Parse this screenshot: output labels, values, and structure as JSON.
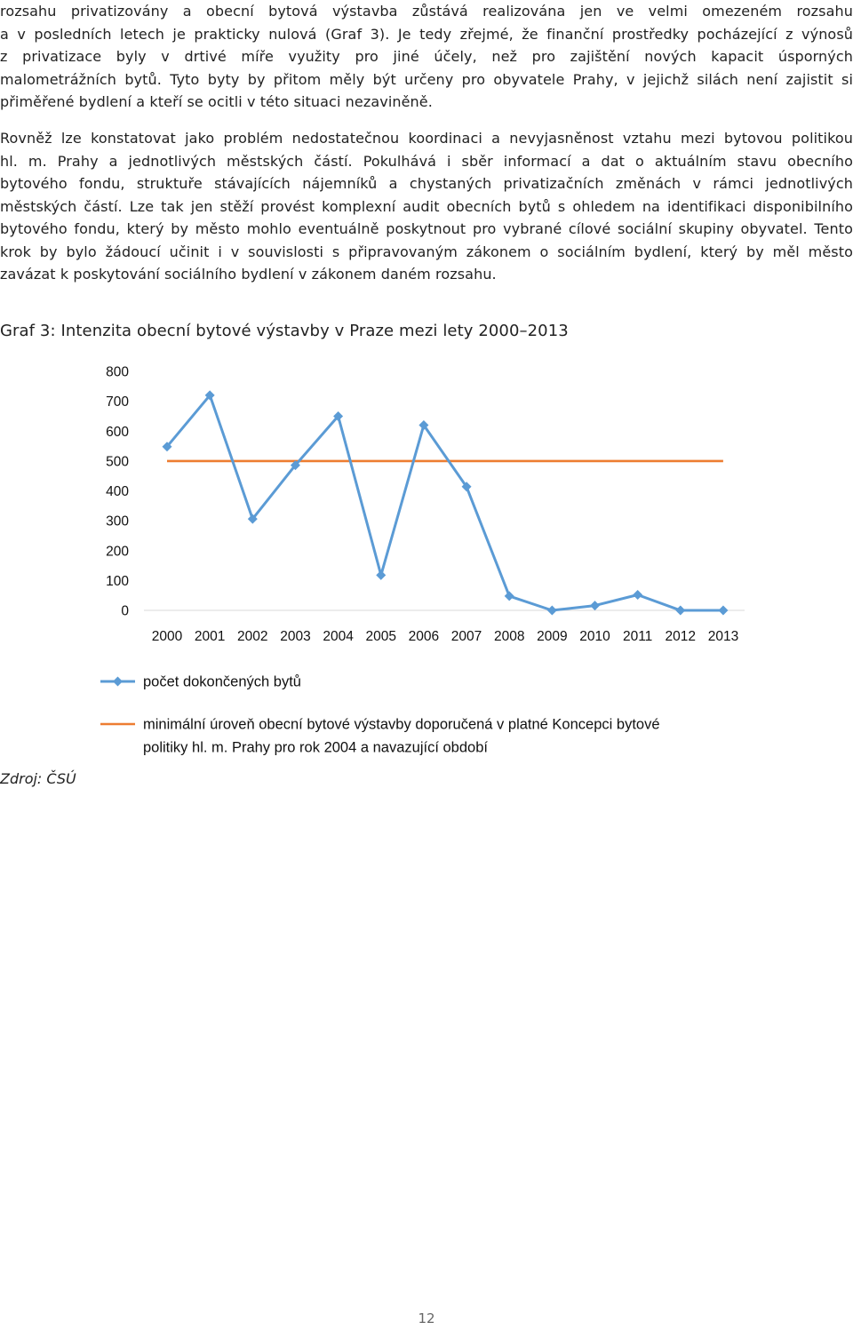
{
  "paragraph1": [
    "rozsahu privatizovány a obecní bytová výstavba zůstává realizována jen ve velmi omezeném rozsahu",
    "a v posledních letech je prakticky nulová (Graf 3). Je tedy zřejmé, že finanční prostředky pocházející z výnosů",
    "z privatizace byly v drtivé míře využity pro jiné účely, než pro zajištění nových kapacit úsporných",
    "malometrážních bytů. Tyto byty by přitom měly být určeny pro obyvatele Prahy, v jejichž silách není zajistit si",
    "přiměřené bydlení a kteří se ocitli v této situaci nezaviněně."
  ],
  "paragraph2": [
    "Rovněž lze konstatovat jako problém nedostatečnou koordinaci a nevyjasněnost vztahu mezi bytovou politikou",
    "hl. m. Prahy a jednotlivých městských částí. Pokulhává i sběr informací a dat o aktuálním stavu obecního",
    "bytového fondu, struktuře stávajících nájemníků a chystaných privatizačních změnách v rámci jednotlivých",
    "městských částí. Lze tak jen stěží provést komplexní audit obecních bytů s ohledem na identifikaci disponibilního",
    "bytového fondu, který by město mohlo eventuálně poskytnout pro vybrané cílové sociální skupiny obyvatel. Tento",
    "krok by bylo žádoucí učinit i v souvislosti s připravovaným zákonem o sociálním bydlení, který by měl město",
    "zavázat k poskytování sociálního bydlení v zákonem daném rozsahu."
  ],
  "caption": "Graf 3: Intenzita obecní bytové výstavby v Praze mezi lety 2000–2013",
  "source": "Zdroj: ČSÚ",
  "page_number": "12",
  "chart_data": {
    "type": "line",
    "title": "",
    "xlabel": "",
    "ylabel": "",
    "ylim": [
      0,
      800
    ],
    "yticks": [
      "0",
      "100",
      "200",
      "300",
      "400",
      "500",
      "600",
      "700",
      "800"
    ],
    "categories": [
      "2000",
      "2001",
      "2002",
      "2003",
      "2004",
      "2005",
      "2006",
      "2007",
      "2008",
      "2009",
      "2010",
      "2011",
      "2012",
      "2013"
    ],
    "series": [
      {
        "name": "počet dokončených bytů",
        "color": "#5b9bd5",
        "marker": "diamond",
        "values": [
          548,
          720,
          306,
          486,
          650,
          118,
          620,
          414,
          48,
          0,
          16,
          52,
          0,
          0
        ]
      },
      {
        "name": "minimální úroveň obecní bytové výstavby doporučená v platné Koncepci bytové politiky hl. m. Prahy pro rok 2004 a navazující období",
        "color": "#ed7d31",
        "marker": "none",
        "values": [
          500,
          500,
          500,
          500,
          500,
          500,
          500,
          500,
          500,
          500,
          500,
          500,
          500,
          500
        ]
      }
    ],
    "legend_position": "bottom",
    "legend_lines": [
      [
        "počet dokončených bytů"
      ],
      [
        "minimální úroveň obecní bytové výstavby doporučená v platné Koncepci bytové",
        "politiky hl. m. Prahy pro rok 2004 a navazující období"
      ]
    ],
    "grid": false
  }
}
